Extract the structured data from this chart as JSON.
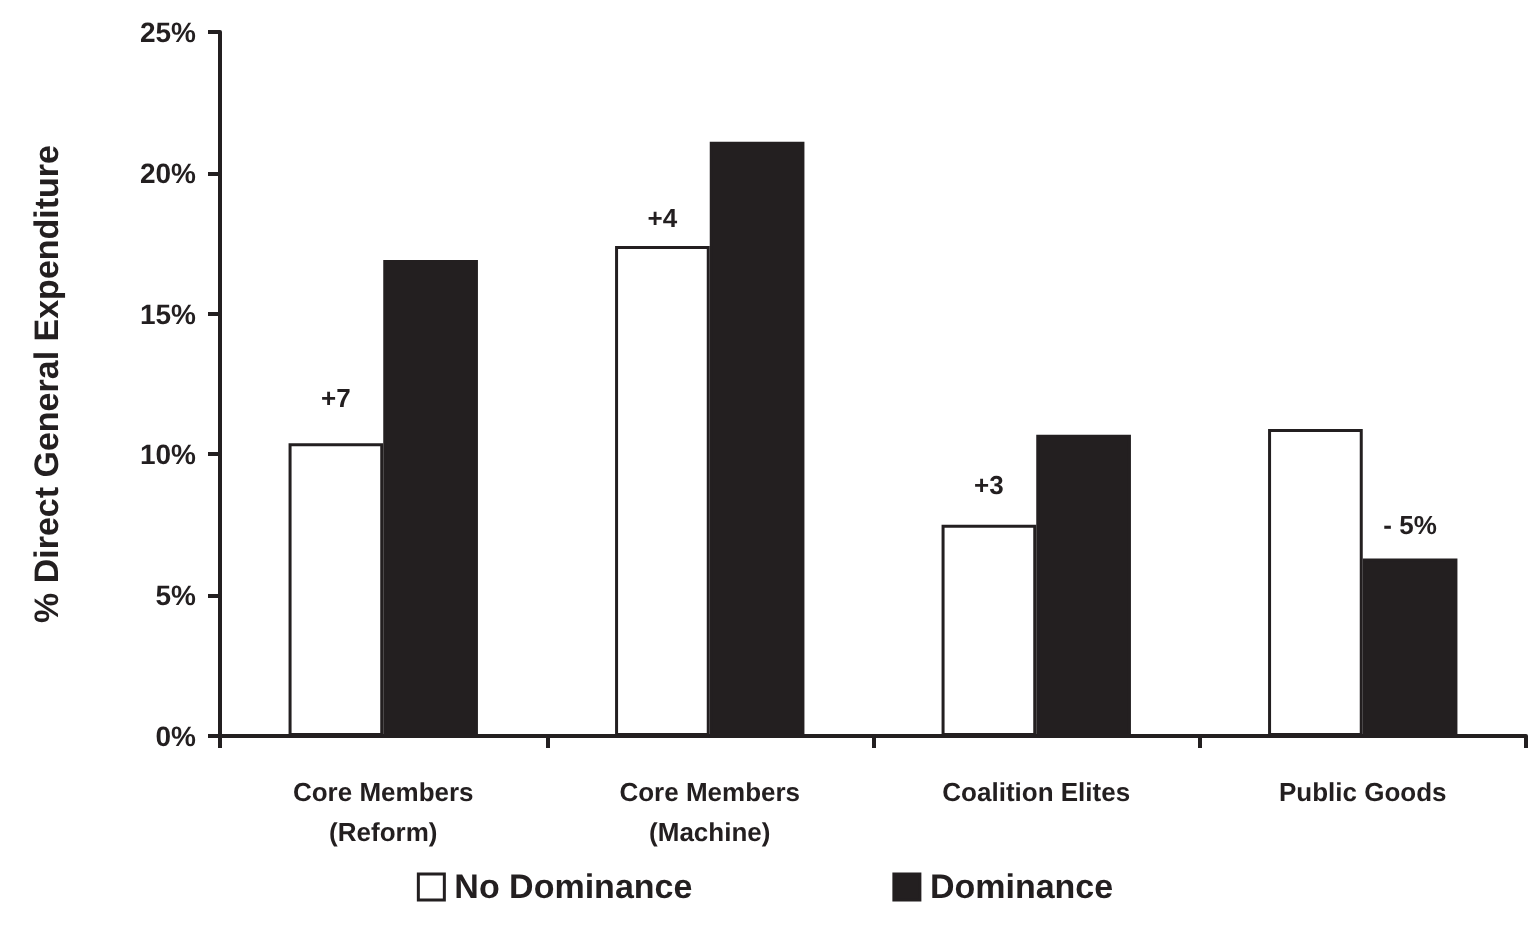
{
  "chart_data": {
    "type": "bar",
    "ylabel": "% Direct General Expenditure",
    "categories": [
      "Core Members\n(Reform)",
      "Core Members\n(Machine)",
      "Coalition Elites",
      "Public Goods"
    ],
    "series": [
      {
        "name": "No Dominance",
        "color": "#ffffff",
        "values": [
          10.4,
          17.4,
          7.5,
          10.9
        ]
      },
      {
        "name": "Dominance",
        "color": "#231f20",
        "values": [
          16.9,
          21.1,
          10.7,
          6.3
        ]
      }
    ],
    "ylim": [
      0,
      25
    ],
    "yticks": [
      {
        "value": 0,
        "label": "0%"
      },
      {
        "value": 5,
        "label": "5%"
      },
      {
        "value": 10,
        "label": "10%"
      },
      {
        "value": 15,
        "label": "15%"
      },
      {
        "value": 20,
        "label": "20%"
      },
      {
        "value": 25,
        "label": "25%"
      }
    ],
    "annotations": [
      {
        "text": "+7",
        "x": "Core Members\n(Reform)",
        "y": 12.0
      },
      {
        "text": "+4",
        "x": "Core Members\n(Machine)",
        "y": 18.4
      },
      {
        "text": "+3",
        "x": "Coalition Elites",
        "y": 8.9
      },
      {
        "text": "- 5%",
        "x": "Public Goods",
        "y": 7.5
      }
    ],
    "grid": false,
    "legend": "bottom"
  }
}
